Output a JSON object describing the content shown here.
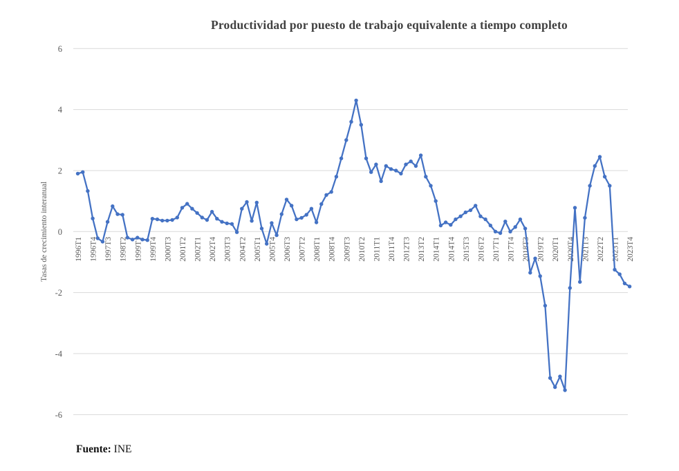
{
  "chart": {
    "title": "Productividad por puesto de trabajo equivalente a tiempo completo",
    "source_label": "Fuente:",
    "source_value": "INE"
  },
  "chart_data": {
    "type": "line",
    "title": "Productividad por puesto de trabajo equivalente a tiempo completo",
    "xlabel": "",
    "ylabel": "Tasas de crecimiento interanual",
    "ylim": [
      -6,
      6
    ],
    "y_ticks": [
      6,
      4,
      2,
      0,
      -2,
      -4,
      -6
    ],
    "grid": "horizontal",
    "legend": "none",
    "line_color": "#4472C4",
    "marker": "circle",
    "x_start": "1996T1",
    "x_end": "2023T4",
    "x_frequency": "quarterly",
    "x_ticks_every_n_quarters": 3,
    "x_tick_labels": [
      "1996T1",
      "1996T4",
      "1997T3",
      "1998T2",
      "1999T1",
      "1999T4",
      "2000T3",
      "2001T2",
      "2002T1",
      "2002T4",
      "2003T3",
      "2004T2",
      "2005T1",
      "2005T4",
      "2006T3",
      "2007T2",
      "2008T1",
      "2008T4",
      "2009T3",
      "2010T2",
      "2011T1",
      "2011T4",
      "2012T3",
      "2013T2",
      "2014T1",
      "2014T4",
      "2015T3",
      "2016T2",
      "2017T1",
      "2017T4",
      "2018T3",
      "2019T2",
      "2020T1",
      "2020T4",
      "2021T3",
      "2022T2",
      "2023T1",
      "2023T4"
    ],
    "series": [
      {
        "name": "Productividad por puesto de trabajo equivalente a tiempo completo",
        "values": [
          1.9,
          1.95,
          1.33,
          0.43,
          -0.22,
          -0.33,
          0.32,
          0.83,
          0.57,
          0.55,
          -0.2,
          -0.26,
          -0.2,
          -0.26,
          -0.28,
          0.42,
          0.4,
          0.36,
          0.36,
          0.38,
          0.46,
          0.78,
          0.91,
          0.75,
          0.61,
          0.46,
          0.38,
          0.65,
          0.42,
          0.32,
          0.27,
          0.25,
          -0.02,
          0.75,
          0.97,
          0.35,
          0.95,
          0.1,
          -0.4,
          0.28,
          -0.12,
          0.57,
          1.05,
          0.85,
          0.4,
          0.45,
          0.55,
          0.75,
          0.3,
          0.9,
          1.2,
          1.3,
          1.8,
          2.4,
          3.0,
          3.6,
          4.3,
          3.5,
          2.4,
          1.95,
          2.2,
          1.65,
          2.15,
          2.05,
          2.0,
          1.9,
          2.2,
          2.3,
          2.15,
          2.5,
          1.8,
          1.5,
          1.0,
          0.2,
          0.3,
          0.22,
          0.4,
          0.5,
          0.63,
          0.7,
          0.85,
          0.5,
          0.4,
          0.2,
          0.0,
          -0.05,
          0.33,
          0.0,
          0.15,
          0.4,
          0.1,
          -1.35,
          -0.88,
          -1.46,
          -2.43,
          -4.8,
          -5.1,
          -4.75,
          -5.2,
          -1.85,
          0.78,
          -1.65,
          0.45,
          1.5,
          2.15,
          2.45,
          1.8,
          1.5,
          -1.25,
          -1.4,
          -1.7,
          -1.8
        ]
      }
    ],
    "source": "Fuente: INE"
  }
}
